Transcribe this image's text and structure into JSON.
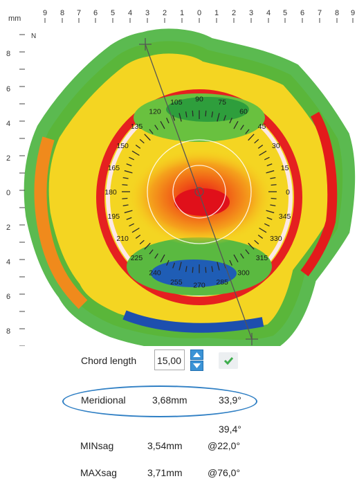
{
  "units": {
    "mm": "mm",
    "north": "N"
  },
  "top_ruler": {
    "labels": [
      "9",
      "8",
      "7",
      "6",
      "5",
      "4",
      "3",
      "2",
      "1",
      "0",
      "1",
      "2",
      "3",
      "4",
      "5",
      "6",
      "7",
      "8",
      "9"
    ]
  },
  "left_ruler": {
    "labels": [
      "8",
      "6",
      "4",
      "2",
      "0",
      "2",
      "4",
      "6",
      "8"
    ]
  },
  "angle_labels": [
    "90",
    "75",
    "60",
    "45",
    "30",
    "15",
    "0",
    "345",
    "330",
    "315",
    "300",
    "285",
    "270",
    "255",
    "240",
    "225",
    "210",
    "195",
    "180",
    "165",
    "150",
    "135",
    "120",
    "105"
  ],
  "chord": {
    "label": "Chord length",
    "value": "15,00",
    "apply": "✔"
  },
  "meridional": {
    "label": "Meridional",
    "value": "3,68mm",
    "angle": "33,9°"
  },
  "extra_angle": "39,4°",
  "minsag": {
    "label": "MINsag",
    "value": "3,54mm",
    "angle": "@22,0°"
  },
  "maxsag": {
    "label": "MAXsag",
    "value": "3,71mm",
    "angle": "@76,0°"
  },
  "colors": {
    "highlight": "#2f7fc4",
    "spin": "#3b93d6",
    "check": "#3fae4e"
  }
}
